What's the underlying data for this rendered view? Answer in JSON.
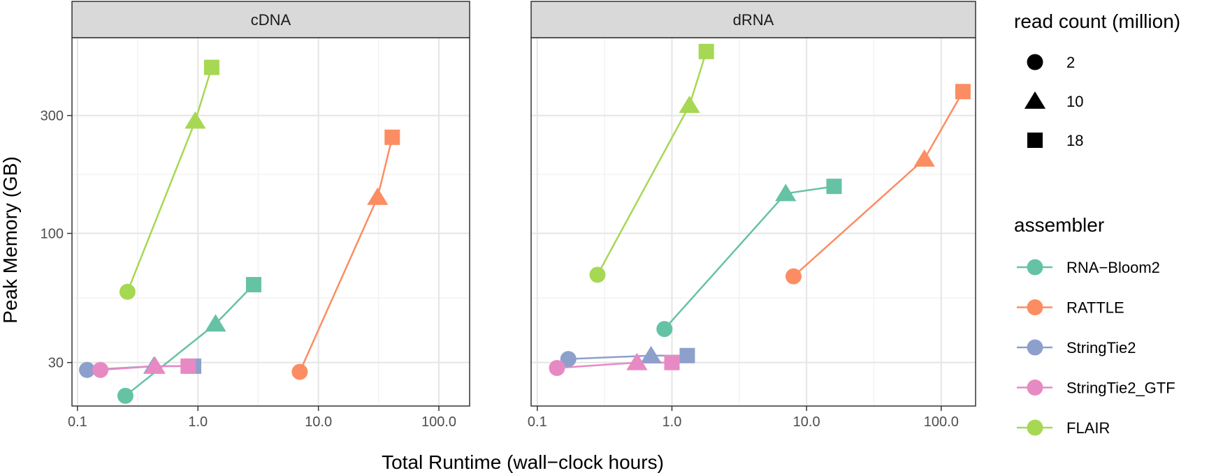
{
  "chart_data": {
    "type": "scatter",
    "x_label": "Total Runtime (wall−clock hours)",
    "y_label": "Peak Memory (GB)",
    "x_scale": "log",
    "y_scale": "log",
    "x_lim": [
      0.09,
      180
    ],
    "y_lim": [
      20,
      620
    ],
    "x_ticks": [
      0.1,
      1,
      10,
      100
    ],
    "x_tick_labels": [
      "0.1",
      "1.0",
      "10.0",
      "100.0"
    ],
    "y_ticks": [
      30,
      100,
      300
    ],
    "y_tick_labels": [
      "30",
      "100",
      "300"
    ],
    "grid": true,
    "facets": [
      {
        "label": "cDNA",
        "series": [
          {
            "name": "RNA−Bloom2",
            "points": [
              {
                "x": 0.25,
                "y": 22,
                "reads": 2
              },
              {
                "x": 1.4,
                "y": 43,
                "reads": 10
              },
              {
                "x": 2.9,
                "y": 62,
                "reads": 18
              }
            ]
          },
          {
            "name": "RATTLE",
            "points": [
              {
                "x": 7.0,
                "y": 27.5,
                "reads": 2
              },
              {
                "x": 31,
                "y": 140,
                "reads": 10
              },
              {
                "x": 41,
                "y": 245,
                "reads": 18
              }
            ]
          },
          {
            "name": "StringTie2",
            "points": [
              {
                "x": 0.12,
                "y": 28,
                "reads": 2
              },
              {
                "x": 0.43,
                "y": 29,
                "reads": 10
              },
              {
                "x": 0.92,
                "y": 29,
                "reads": 18
              }
            ]
          },
          {
            "name": "StringTie2_GTF",
            "points": [
              {
                "x": 0.155,
                "y": 28,
                "reads": 2
              },
              {
                "x": 0.44,
                "y": 29,
                "reads": 10
              },
              {
                "x": 0.83,
                "y": 29,
                "reads": 18
              }
            ]
          },
          {
            "name": "FLAIR",
            "points": [
              {
                "x": 0.26,
                "y": 58,
                "reads": 2
              },
              {
                "x": 0.95,
                "y": 285,
                "reads": 10
              },
              {
                "x": 1.3,
                "y": 470,
                "reads": 18
              }
            ]
          }
        ]
      },
      {
        "label": "dRNA",
        "series": [
          {
            "name": "RNA−Bloom2",
            "points": [
              {
                "x": 0.88,
                "y": 41,
                "reads": 2
              },
              {
                "x": 7.0,
                "y": 145,
                "reads": 10
              },
              {
                "x": 16,
                "y": 155,
                "reads": 18
              }
            ]
          },
          {
            "name": "RATTLE",
            "points": [
              {
                "x": 8.0,
                "y": 67,
                "reads": 2
              },
              {
                "x": 75,
                "y": 200,
                "reads": 10
              },
              {
                "x": 145,
                "y": 375,
                "reads": 18
              }
            ]
          },
          {
            "name": "StringTie2",
            "points": [
              {
                "x": 0.17,
                "y": 31,
                "reads": 2
              },
              {
                "x": 0.7,
                "y": 32,
                "reads": 10
              },
              {
                "x": 1.3,
                "y": 32,
                "reads": 18
              }
            ]
          },
          {
            "name": "StringTie2_GTF",
            "points": [
              {
                "x": 0.14,
                "y": 28.5,
                "reads": 2
              },
              {
                "x": 0.55,
                "y": 30,
                "reads": 10
              },
              {
                "x": 1.0,
                "y": 30,
                "reads": 18
              }
            ]
          },
          {
            "name": "FLAIR",
            "points": [
              {
                "x": 0.28,
                "y": 68,
                "reads": 2
              },
              {
                "x": 1.35,
                "y": 330,
                "reads": 10
              },
              {
                "x": 1.8,
                "y": 545,
                "reads": 18
              }
            ]
          }
        ]
      }
    ],
    "legend": {
      "placement": "right",
      "shape_title": "read count (million)",
      "shapes": [
        {
          "label": "2",
          "shape": "circle"
        },
        {
          "label": "10",
          "shape": "triangle"
        },
        {
          "label": "18",
          "shape": "square"
        }
      ],
      "color_title": "assembler",
      "colors": [
        {
          "label": "RNA−Bloom2",
          "color": "#66c2a5"
        },
        {
          "label": "RATTLE",
          "color": "#fc8d62"
        },
        {
          "label": "StringTie2",
          "color": "#8da0cb"
        },
        {
          "label": "StringTie2_GTF",
          "color": "#e78ac3"
        },
        {
          "label": "FLAIR",
          "color": "#a6d854"
        }
      ]
    }
  }
}
